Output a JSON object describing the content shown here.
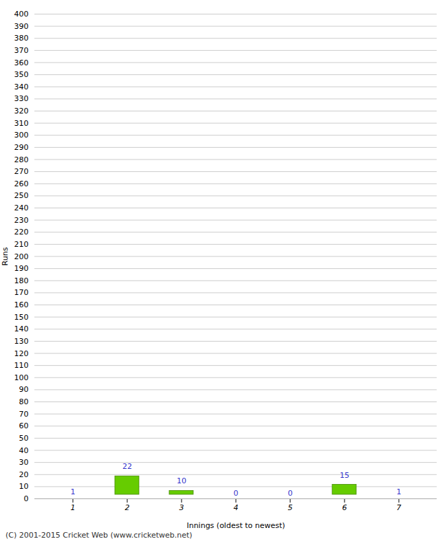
{
  "chart_data": {
    "type": "bar",
    "categories": [
      1,
      2,
      3,
      4,
      5,
      6,
      7
    ],
    "values": [
      1,
      22,
      10,
      0,
      0,
      15,
      1
    ],
    "color": "#66cc00",
    "xlabel": "Innings (oldest to newest)",
    "ylabel": "Runs",
    "ylim": [
      0,
      400
    ],
    "yticks": [
      0,
      10,
      20,
      30,
      40,
      50,
      60,
      70,
      80,
      90,
      100,
      110,
      120,
      130,
      140,
      150,
      160,
      170,
      180,
      190,
      200,
      210,
      220,
      230,
      240,
      250,
      260,
      270,
      280,
      290,
      300,
      310,
      320,
      330,
      340,
      350,
      360,
      370,
      380,
      390,
      400
    ],
    "grid": true,
    "data_labels": true,
    "annotations": [
      "(C) 2001-2015 Cricket Web (www.cricketweb.net)"
    ]
  }
}
